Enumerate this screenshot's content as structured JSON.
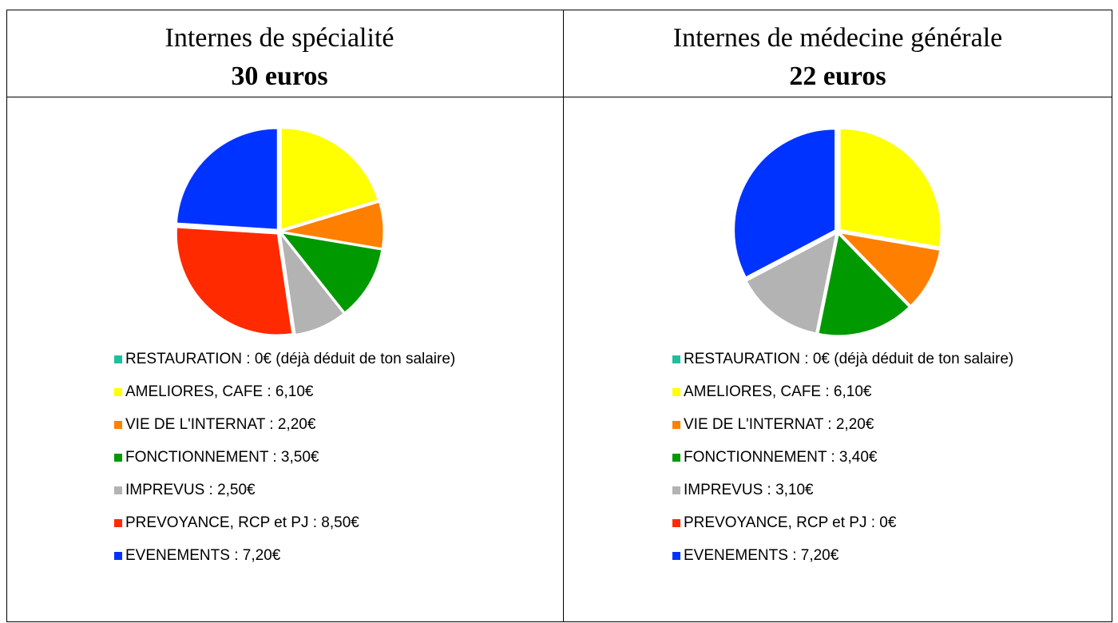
{
  "chart_data": [
    {
      "type": "pie",
      "title": "Internes de spécialité",
      "subtitle": "30 euros",
      "categories": [
        "RESTAURATION : 0€ (déjà déduit de ton salaire)",
        "AMELIORES, CAFE : 6,10€",
        "VIE DE L'INTERNAT : 2,20€",
        "FONCTIONNEMENT : 3,50€",
        "IMPREVUS : 2,50€",
        "PREVOYANCE, RCP et PJ : 8,50€",
        "EVENEMENTS : 7,20€"
      ],
      "values": [
        0,
        6.1,
        2.2,
        3.5,
        2.5,
        8.5,
        7.2
      ],
      "colors": [
        "#1fbf9a",
        "#ffff00",
        "#ff7f00",
        "#009900",
        "#b3b3b3",
        "#ff2a00",
        "#0033ff"
      ]
    },
    {
      "type": "pie",
      "title": "Internes de médecine générale",
      "subtitle": "22 euros",
      "categories": [
        "RESTAURATION : 0€ (déjà déduit de ton salaire)",
        "AMELIORES, CAFE : 6,10€",
        "VIE DE L'INTERNAT : 2,20€",
        "FONCTIONNEMENT : 3,40€",
        "IMPREVUS : 3,10€",
        "PREVOYANCE, RCP et PJ : 0€",
        "EVENEMENTS : 7,20€"
      ],
      "values": [
        0,
        6.1,
        2.2,
        3.4,
        3.1,
        0,
        7.2
      ],
      "colors": [
        "#1fbf9a",
        "#ffff00",
        "#ff7f00",
        "#009900",
        "#b3b3b3",
        "#ff2a00",
        "#0033ff"
      ]
    }
  ]
}
